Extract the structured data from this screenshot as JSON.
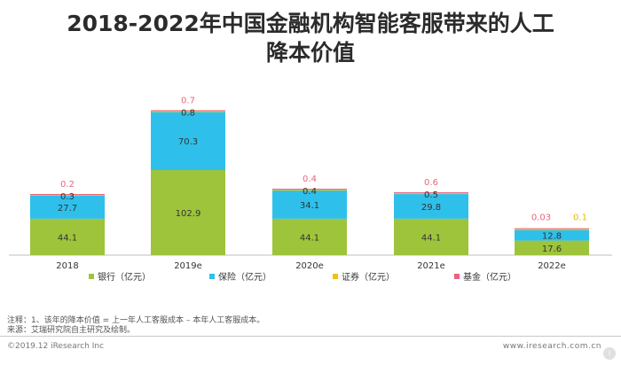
{
  "title_line1": "2018-2022年中国金融机构智能客服带来的人工",
  "title_line2": "降本价值",
  "chart_data": {
    "type": "bar",
    "stacked": true,
    "categories": [
      "2018",
      "2019e",
      "2020e",
      "2021e",
      "2022e"
    ],
    "series": [
      {
        "name": "银行（亿元）",
        "color": "#9ec43b",
        "values": [
          44.1,
          102.9,
          44.1,
          44.1,
          17.6
        ]
      },
      {
        "name": "保险（亿元）",
        "color": "#2ec0ea",
        "values": [
          27.7,
          70.3,
          34.1,
          29.8,
          12.8
        ]
      },
      {
        "name": "证券（亿元）",
        "color": "#f2c10f",
        "values": [
          0.3,
          0.8,
          0.4,
          0.5,
          0.1
        ]
      },
      {
        "name": "基金（亿元）",
        "color": "#e8657d",
        "values": [
          0.2,
          0.7,
          0.4,
          0.6,
          0.03
        ]
      }
    ],
    "legend_position": "bottom",
    "grid": false
  },
  "notes": {
    "line1": "注释：1、该年的降本价值 = 上一年人工客服成本 – 本年人工客服成本。",
    "line2": "来源：艾瑞研究院自主研究及绘制。"
  },
  "footer": {
    "copyright": "©2019.12 iResearch Inc",
    "website": "www.iresearch.com.cn"
  }
}
